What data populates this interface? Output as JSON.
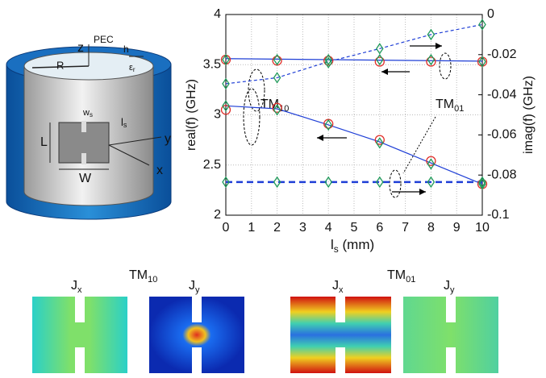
{
  "chart_data": {
    "type": "line",
    "x": [
      0,
      2,
      4,
      6,
      8,
      10
    ],
    "xlim": [
      0,
      10
    ],
    "xticks": [
      0,
      1,
      2,
      3,
      4,
      5,
      6,
      7,
      8,
      9,
      10
    ],
    "ylim": [
      2,
      4
    ],
    "yticks": [
      2,
      2.5,
      3,
      3.5,
      4
    ],
    "y2lim": [
      -0.1,
      0
    ],
    "y2ticks": [
      -0.1,
      -0.08,
      -0.06,
      -0.04,
      -0.02,
      0
    ],
    "grid": true,
    "y_label": "real(f) (GHz)",
    "y2_label": "imag(f) (GHz)",
    "x_label": {
      "base": "l",
      "sub": "s",
      "rest": " (mm)"
    },
    "annotations": [
      {
        "base": "TM",
        "sub": "10"
      },
      {
        "base": "TM",
        "sub": "01"
      }
    ],
    "series": [
      {
        "style": "solid",
        "color": "#1f3fd6",
        "values": [
          3.09,
          3.06,
          2.9,
          2.73,
          2.52,
          2.31
        ]
      },
      {
        "style": "solid",
        "color": "#1f3fd6",
        "values": [
          3.56,
          3.555,
          3.55,
          3.545,
          3.54,
          3.535
        ]
      },
      {
        "style": "dashed",
        "axis": "y2",
        "color": "#1f3fd6",
        "values": [
          -0.0345,
          -0.0315,
          -0.0235,
          -0.017,
          -0.01,
          -0.005
        ]
      },
      {
        "style": "thick-dashed",
        "axis": "y2",
        "color": "#1f3fd6",
        "values": [
          -0.0835,
          -0.0835,
          -0.0835,
          -0.0835,
          -0.0835,
          -0.0835
        ]
      },
      {
        "style": "circle",
        "color": "#e0302a",
        "values": [
          3.05,
          3.07,
          2.91,
          2.75,
          2.54,
          2.31
        ]
      },
      {
        "style": "circle",
        "color": "#e0302a",
        "values": [
          3.55,
          3.54,
          3.54,
          3.53,
          3.53,
          3.53
        ]
      },
      {
        "style": "diamond",
        "color": "#1f9a5a",
        "values": [
          3.09,
          3.05,
          2.9,
          2.72,
          2.51,
          2.31
        ]
      },
      {
        "style": "diamond",
        "color": "#1f9a5a",
        "values": [
          3.55,
          3.55,
          3.55,
          3.55,
          3.55,
          3.53
        ]
      },
      {
        "style": "diamond",
        "axis": "y2",
        "color": "#1f9a5a",
        "values": [
          -0.0345,
          -0.0315,
          -0.024,
          -0.017,
          -0.01,
          -0.005
        ]
      },
      {
        "style": "diamond",
        "axis": "y2",
        "color": "#1f9a5a",
        "values": [
          -0.0835,
          -0.0835,
          -0.0835,
          -0.0835,
          -0.0835,
          -0.0835
        ]
      }
    ]
  },
  "diagram": {
    "pec": "PEC",
    "z": "z",
    "h": "h",
    "r": "R",
    "eps": {
      "base": "ε",
      "sub": "r"
    },
    "ws": {
      "base": "w",
      "sub": "s"
    },
    "ls": {
      "base": "l",
      "sub": "s"
    },
    "l": "L",
    "w": "W",
    "y": "y",
    "x": "x"
  },
  "fields": {
    "tm10": {
      "base": "TM",
      "sub": "10"
    },
    "tm01": {
      "base": "TM",
      "sub": "01"
    },
    "labels": [
      {
        "base": "J",
        "sub": "x"
      },
      {
        "base": "J",
        "sub": "y"
      },
      {
        "base": "J",
        "sub": "x"
      },
      {
        "base": "J",
        "sub": "y"
      }
    ]
  }
}
